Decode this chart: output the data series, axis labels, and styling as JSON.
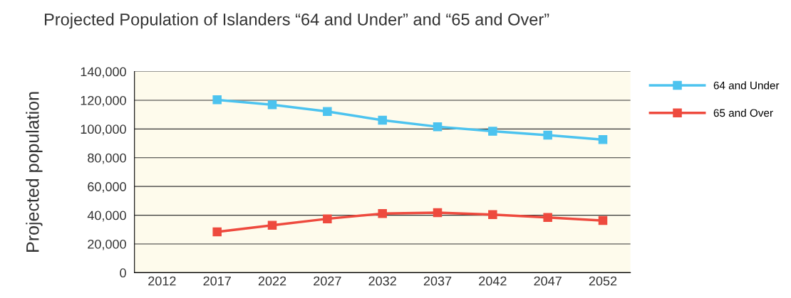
{
  "chart_data": {
    "type": "line",
    "title": "Projected Population of Islanders “64 and Under” and “65 and Over”",
    "ylabel": "Projected population",
    "categories": [
      "2012",
      "2017",
      "2022",
      "2027",
      "2032",
      "2037",
      "2042",
      "2047",
      "2052"
    ],
    "series": [
      {
        "name": "64 and Under",
        "color": "#4cc3ef",
        "values": [
          null,
          120300,
          116900,
          112200,
          106100,
          101600,
          98400,
          95700,
          92600
        ]
      },
      {
        "name": "65 and Over",
        "color": "#ee4a3e",
        "values": [
          null,
          28400,
          33000,
          37500,
          41100,
          41800,
          40400,
          38400,
          36300
        ]
      }
    ],
    "ylim": [
      0,
      140000
    ],
    "yticks": [
      {
        "value": 0,
        "label": "0"
      },
      {
        "value": 20000,
        "label": "20,000"
      },
      {
        "value": 40000,
        "label": "40,000"
      },
      {
        "value": 60000,
        "label": "60,000"
      },
      {
        "value": 80000,
        "label": "80,000"
      },
      {
        "value": 100000,
        "label": "100,000"
      },
      {
        "value": 120000,
        "label": "120,000"
      },
      {
        "value": 140000,
        "label": "140,000"
      }
    ],
    "grid": "y",
    "legend": "right",
    "marker": "square",
    "line_style": "solid"
  }
}
